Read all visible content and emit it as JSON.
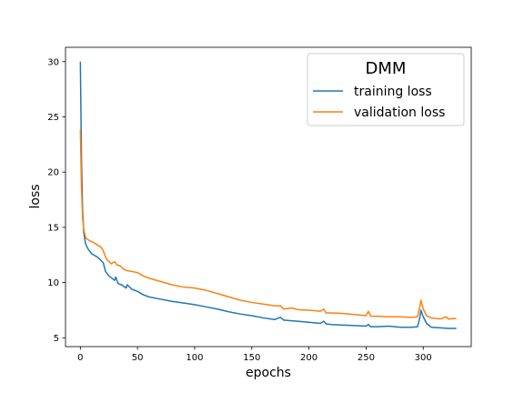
{
  "chart_data": {
    "type": "line",
    "xlabel": "epochs",
    "ylabel": "loss",
    "xlim": [
      -13,
      342
    ],
    "ylim": [
      4.2,
      31.3
    ],
    "xticks": [
      0,
      50,
      100,
      150,
      200,
      250,
      300
    ],
    "yticks": [
      5,
      10,
      15,
      20,
      25,
      30
    ],
    "grid": false,
    "legend": {
      "title": "DMM",
      "position": "upper right",
      "entries": [
        "training loss",
        "validation loss"
      ]
    },
    "series": [
      {
        "name": "training loss",
        "color": "#1f77b4",
        "points": [
          [
            0,
            30.0
          ],
          [
            1,
            21.0
          ],
          [
            2,
            16.5
          ],
          [
            3,
            14.5
          ],
          [
            4,
            13.8
          ],
          [
            5,
            13.4
          ],
          [
            7,
            13.0
          ],
          [
            10,
            12.6
          ],
          [
            15,
            12.3
          ],
          [
            20,
            11.8
          ],
          [
            22,
            11.0
          ],
          [
            25,
            10.6
          ],
          [
            30,
            10.2
          ],
          [
            31,
            10.5
          ],
          [
            33,
            9.9
          ],
          [
            36,
            9.8
          ],
          [
            40,
            9.5
          ],
          [
            41,
            9.8
          ],
          [
            45,
            9.4
          ],
          [
            50,
            9.2
          ],
          [
            55,
            8.9
          ],
          [
            60,
            8.7
          ],
          [
            70,
            8.5
          ],
          [
            80,
            8.3
          ],
          [
            90,
            8.15
          ],
          [
            100,
            8.0
          ],
          [
            110,
            7.8
          ],
          [
            120,
            7.6
          ],
          [
            130,
            7.35
          ],
          [
            140,
            7.15
          ],
          [
            150,
            7.0
          ],
          [
            160,
            6.8
          ],
          [
            170,
            6.65
          ],
          [
            175,
            6.85
          ],
          [
            178,
            6.6
          ],
          [
            190,
            6.5
          ],
          [
            200,
            6.4
          ],
          [
            210,
            6.3
          ],
          [
            213,
            6.5
          ],
          [
            215,
            6.25
          ],
          [
            220,
            6.2
          ],
          [
            230,
            6.15
          ],
          [
            240,
            6.1
          ],
          [
            250,
            6.05
          ],
          [
            252,
            6.2
          ],
          [
            254,
            6.0
          ],
          [
            260,
            6.0
          ],
          [
            270,
            6.05
          ],
          [
            280,
            5.95
          ],
          [
            290,
            5.95
          ],
          [
            295,
            6.0
          ],
          [
            297,
            6.8
          ],
          [
            298,
            7.5
          ],
          [
            300,
            6.9
          ],
          [
            303,
            6.3
          ],
          [
            307,
            5.95
          ],
          [
            315,
            5.9
          ],
          [
            322,
            5.85
          ],
          [
            329,
            5.85
          ]
        ]
      },
      {
        "name": "validation loss",
        "color": "#ff7f0e",
        "points": [
          [
            0,
            23.8
          ],
          [
            1,
            18.5
          ],
          [
            2,
            15.8
          ],
          [
            3,
            14.8
          ],
          [
            4,
            14.3
          ],
          [
            5,
            14.0
          ],
          [
            8,
            13.8
          ],
          [
            12,
            13.6
          ],
          [
            15,
            13.4
          ],
          [
            18,
            13.2
          ],
          [
            20,
            12.9
          ],
          [
            22,
            12.3
          ],
          [
            24,
            12.0
          ],
          [
            27,
            11.7
          ],
          [
            30,
            11.9
          ],
          [
            32,
            11.6
          ],
          [
            35,
            11.5
          ],
          [
            38,
            11.2
          ],
          [
            40,
            11.1
          ],
          [
            45,
            11.0
          ],
          [
            50,
            10.9
          ],
          [
            55,
            10.6
          ],
          [
            60,
            10.4
          ],
          [
            70,
            10.1
          ],
          [
            80,
            9.8
          ],
          [
            90,
            9.6
          ],
          [
            100,
            9.5
          ],
          [
            110,
            9.3
          ],
          [
            120,
            9.0
          ],
          [
            130,
            8.7
          ],
          [
            140,
            8.4
          ],
          [
            150,
            8.2
          ],
          [
            160,
            8.05
          ],
          [
            170,
            7.9
          ],
          [
            175,
            7.9
          ],
          [
            178,
            7.6
          ],
          [
            185,
            7.7
          ],
          [
            190,
            7.55
          ],
          [
            200,
            7.5
          ],
          [
            210,
            7.4
          ],
          [
            213,
            7.6
          ],
          [
            215,
            7.25
          ],
          [
            220,
            7.25
          ],
          [
            230,
            7.2
          ],
          [
            240,
            7.1
          ],
          [
            250,
            7.0
          ],
          [
            252,
            7.4
          ],
          [
            254,
            6.95
          ],
          [
            260,
            6.95
          ],
          [
            270,
            6.9
          ],
          [
            280,
            6.9
          ],
          [
            290,
            6.85
          ],
          [
            295,
            6.9
          ],
          [
            297,
            7.8
          ],
          [
            298,
            8.4
          ],
          [
            300,
            7.6
          ],
          [
            303,
            7.0
          ],
          [
            307,
            6.8
          ],
          [
            315,
            6.7
          ],
          [
            320,
            6.9
          ],
          [
            322,
            6.7
          ],
          [
            329,
            6.75
          ]
        ]
      }
    ]
  }
}
